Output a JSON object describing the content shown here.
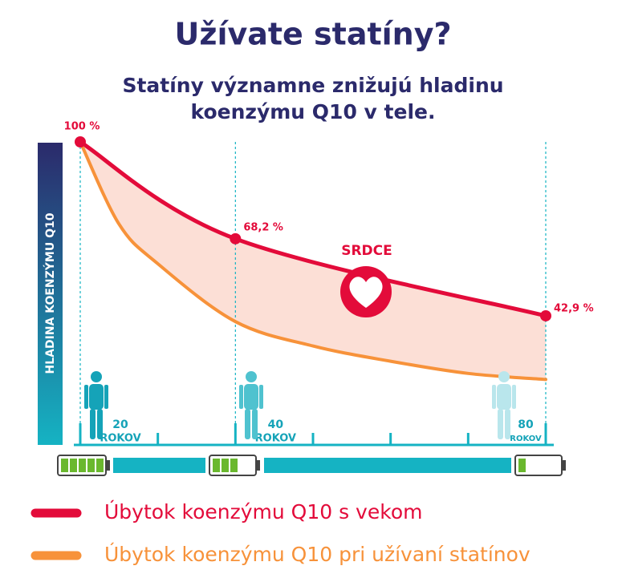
{
  "chart_data": {
    "type": "line",
    "title": "Užívate statíny?",
    "subtitle": [
      "Statíny významne znižujú hladinu",
      "koenzýmu Q10 v tele."
    ],
    "y_label": "HLADINA KOENZÝMU Q10",
    "x_unit": "ROKOV",
    "annotation": "SRDCE",
    "xlim": [
      20,
      80
    ],
    "ylim": [
      0,
      100
    ],
    "xticks": [
      20,
      40,
      80
    ],
    "minor_xticks": [
      30,
      50,
      60,
      70
    ],
    "series": [
      {
        "name": "Úbytok koenzýmu Q10 s vekom",
        "color": "#e30b3a",
        "x": [
          20,
          40,
          80
        ],
        "values": [
          100,
          68.2,
          42.9
        ],
        "value_labels": [
          "100 %",
          "68,2 %",
          "42,9 %"
        ]
      },
      {
        "name": "Úbytok koenzýmu Q10 pri užívaní statínov",
        "color": "#f7923a",
        "x": [
          20,
          25,
          30,
          40,
          50,
          60,
          70,
          80
        ],
        "values": [
          100,
          73,
          60,
          41,
          33,
          28,
          24,
          22
        ]
      }
    ]
  }
}
